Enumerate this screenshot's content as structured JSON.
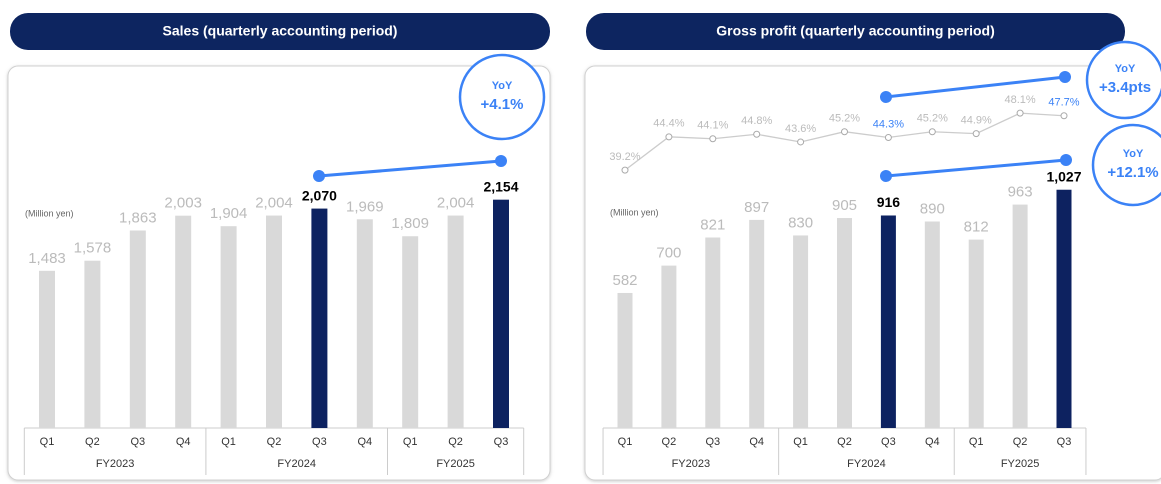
{
  "chart_data": [
    {
      "type": "bar",
      "title": "Sales (quarterly accounting period)",
      "unit_label": "(Million yen)",
      "groups": [
        {
          "label": "FY2023",
          "categories": [
            "Q1",
            "Q2",
            "Q3",
            "Q4"
          ]
        },
        {
          "label": "FY2024",
          "categories": [
            "Q1",
            "Q2",
            "Q3",
            "Q4"
          ]
        },
        {
          "label": "FY2025",
          "categories": [
            "Q1",
            "Q2",
            "Q3"
          ]
        }
      ],
      "series": [
        {
          "type": "bar",
          "values": [
            1483,
            1578,
            1863,
            2003,
            1904,
            2004,
            2070,
            1969,
            1809,
            2004,
            2154
          ],
          "value_labels": [
            "1,483",
            "1,578",
            "1,863",
            "2,003",
            "1,904",
            "2,004",
            "2,070",
            "1,969",
            "1,809",
            "2,004",
            "2,154"
          ],
          "colors": [
            "#d9d9d9",
            "#d9d9d9",
            "#d9d9d9",
            "#d9d9d9",
            "#d9d9d9",
            "#d9d9d9",
            "#0d2260",
            "#d9d9d9",
            "#d9d9d9",
            "#d9d9d9",
            "#0d2260"
          ]
        }
      ],
      "annotations": [
        {
          "label": "YoY",
          "text": "+4.1%"
        }
      ]
    },
    {
      "type": "bar",
      "title": "Gross profit (quarterly accounting period)",
      "unit_label": "(Million yen)",
      "groups": [
        {
          "label": "FY2023",
          "categories": [
            "Q1",
            "Q2",
            "Q3",
            "Q4"
          ]
        },
        {
          "label": "FY2024",
          "categories": [
            "Q1",
            "Q2",
            "Q3",
            "Q4"
          ]
        },
        {
          "label": "FY2025",
          "categories": [
            "Q1",
            "Q2",
            "Q3"
          ]
        }
      ],
      "series": [
        {
          "type": "bar",
          "values": [
            582,
            700,
            821,
            897,
            830,
            905,
            916,
            890,
            812,
            963,
            1027
          ],
          "value_labels": [
            "582",
            "700",
            "821",
            "897",
            "830",
            "905",
            "916",
            "890",
            "812",
            "963",
            "1,027"
          ],
          "colors": [
            "#d9d9d9",
            "#d9d9d9",
            "#d9d9d9",
            "#d9d9d9",
            "#d9d9d9",
            "#d9d9d9",
            "#0d2260",
            "#d9d9d9",
            "#d9d9d9",
            "#d9d9d9",
            "#0d2260"
          ]
        },
        {
          "type": "line",
          "values": [
            39.2,
            44.4,
            44.1,
            44.8,
            43.6,
            45.2,
            44.3,
            45.2,
            44.9,
            48.1,
            47.7
          ],
          "value_labels": [
            "39.2%",
            "44.4%",
            "44.1%",
            "44.8%",
            "43.6%",
            "45.2%",
            "44.3%",
            "45.2%",
            "44.9%",
            "48.1%",
            "47.7%"
          ],
          "label_colors": [
            "#bbbbbb",
            "#bbbbbb",
            "#bbbbbb",
            "#bbbbbb",
            "#bbbbbb",
            "#bbbbbb",
            "#3b82f6",
            "#bbbbbb",
            "#bbbbbb",
            "#bbbbbb",
            "#3b82f6"
          ]
        }
      ],
      "annotations": [
        {
          "label": "YoY",
          "text": "+3.4pts"
        },
        {
          "label": "YoY",
          "text": "+12.1%"
        }
      ]
    }
  ]
}
